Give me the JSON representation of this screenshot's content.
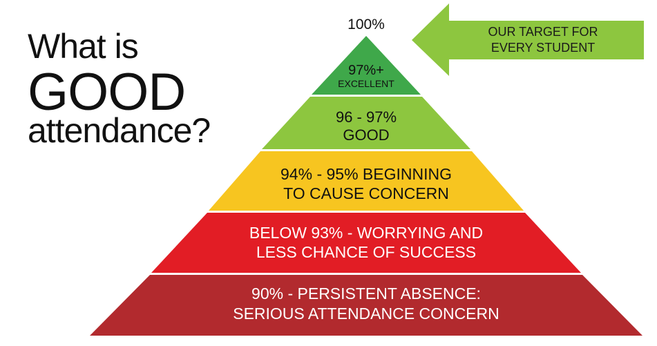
{
  "title": {
    "line1": "What is",
    "line2": "GOOD",
    "line3": "attendance?"
  },
  "peak_label": "100%",
  "target_arrow": {
    "line1": "OUR TARGET FOR",
    "line2": "EVERY STUDENT",
    "color": "#8dc63f"
  },
  "tiers": [
    {
      "line1": "97%+",
      "line2": "EXCELLENT",
      "color": "#3fa84a",
      "text_color": "#111111"
    },
    {
      "line1": "96 - 97%",
      "line2": "GOOD",
      "color": "#8dc63f",
      "text_color": "#111111"
    },
    {
      "line1": "94% - 95% BEGINNING",
      "line2": "TO CAUSE CONCERN",
      "color": "#f7c520",
      "text_color": "#111111"
    },
    {
      "line1": "BELOW 93% - WORRYING AND",
      "line2": "LESS CHANCE OF SUCCESS",
      "color": "#e21d25",
      "text_color": "#ffffff"
    },
    {
      "line1": "90% - PERSISTENT ABSENCE:",
      "line2": "SERIOUS ATTENDANCE CONCERN",
      "color": "#b22a2e",
      "text_color": "#ffffff"
    }
  ]
}
